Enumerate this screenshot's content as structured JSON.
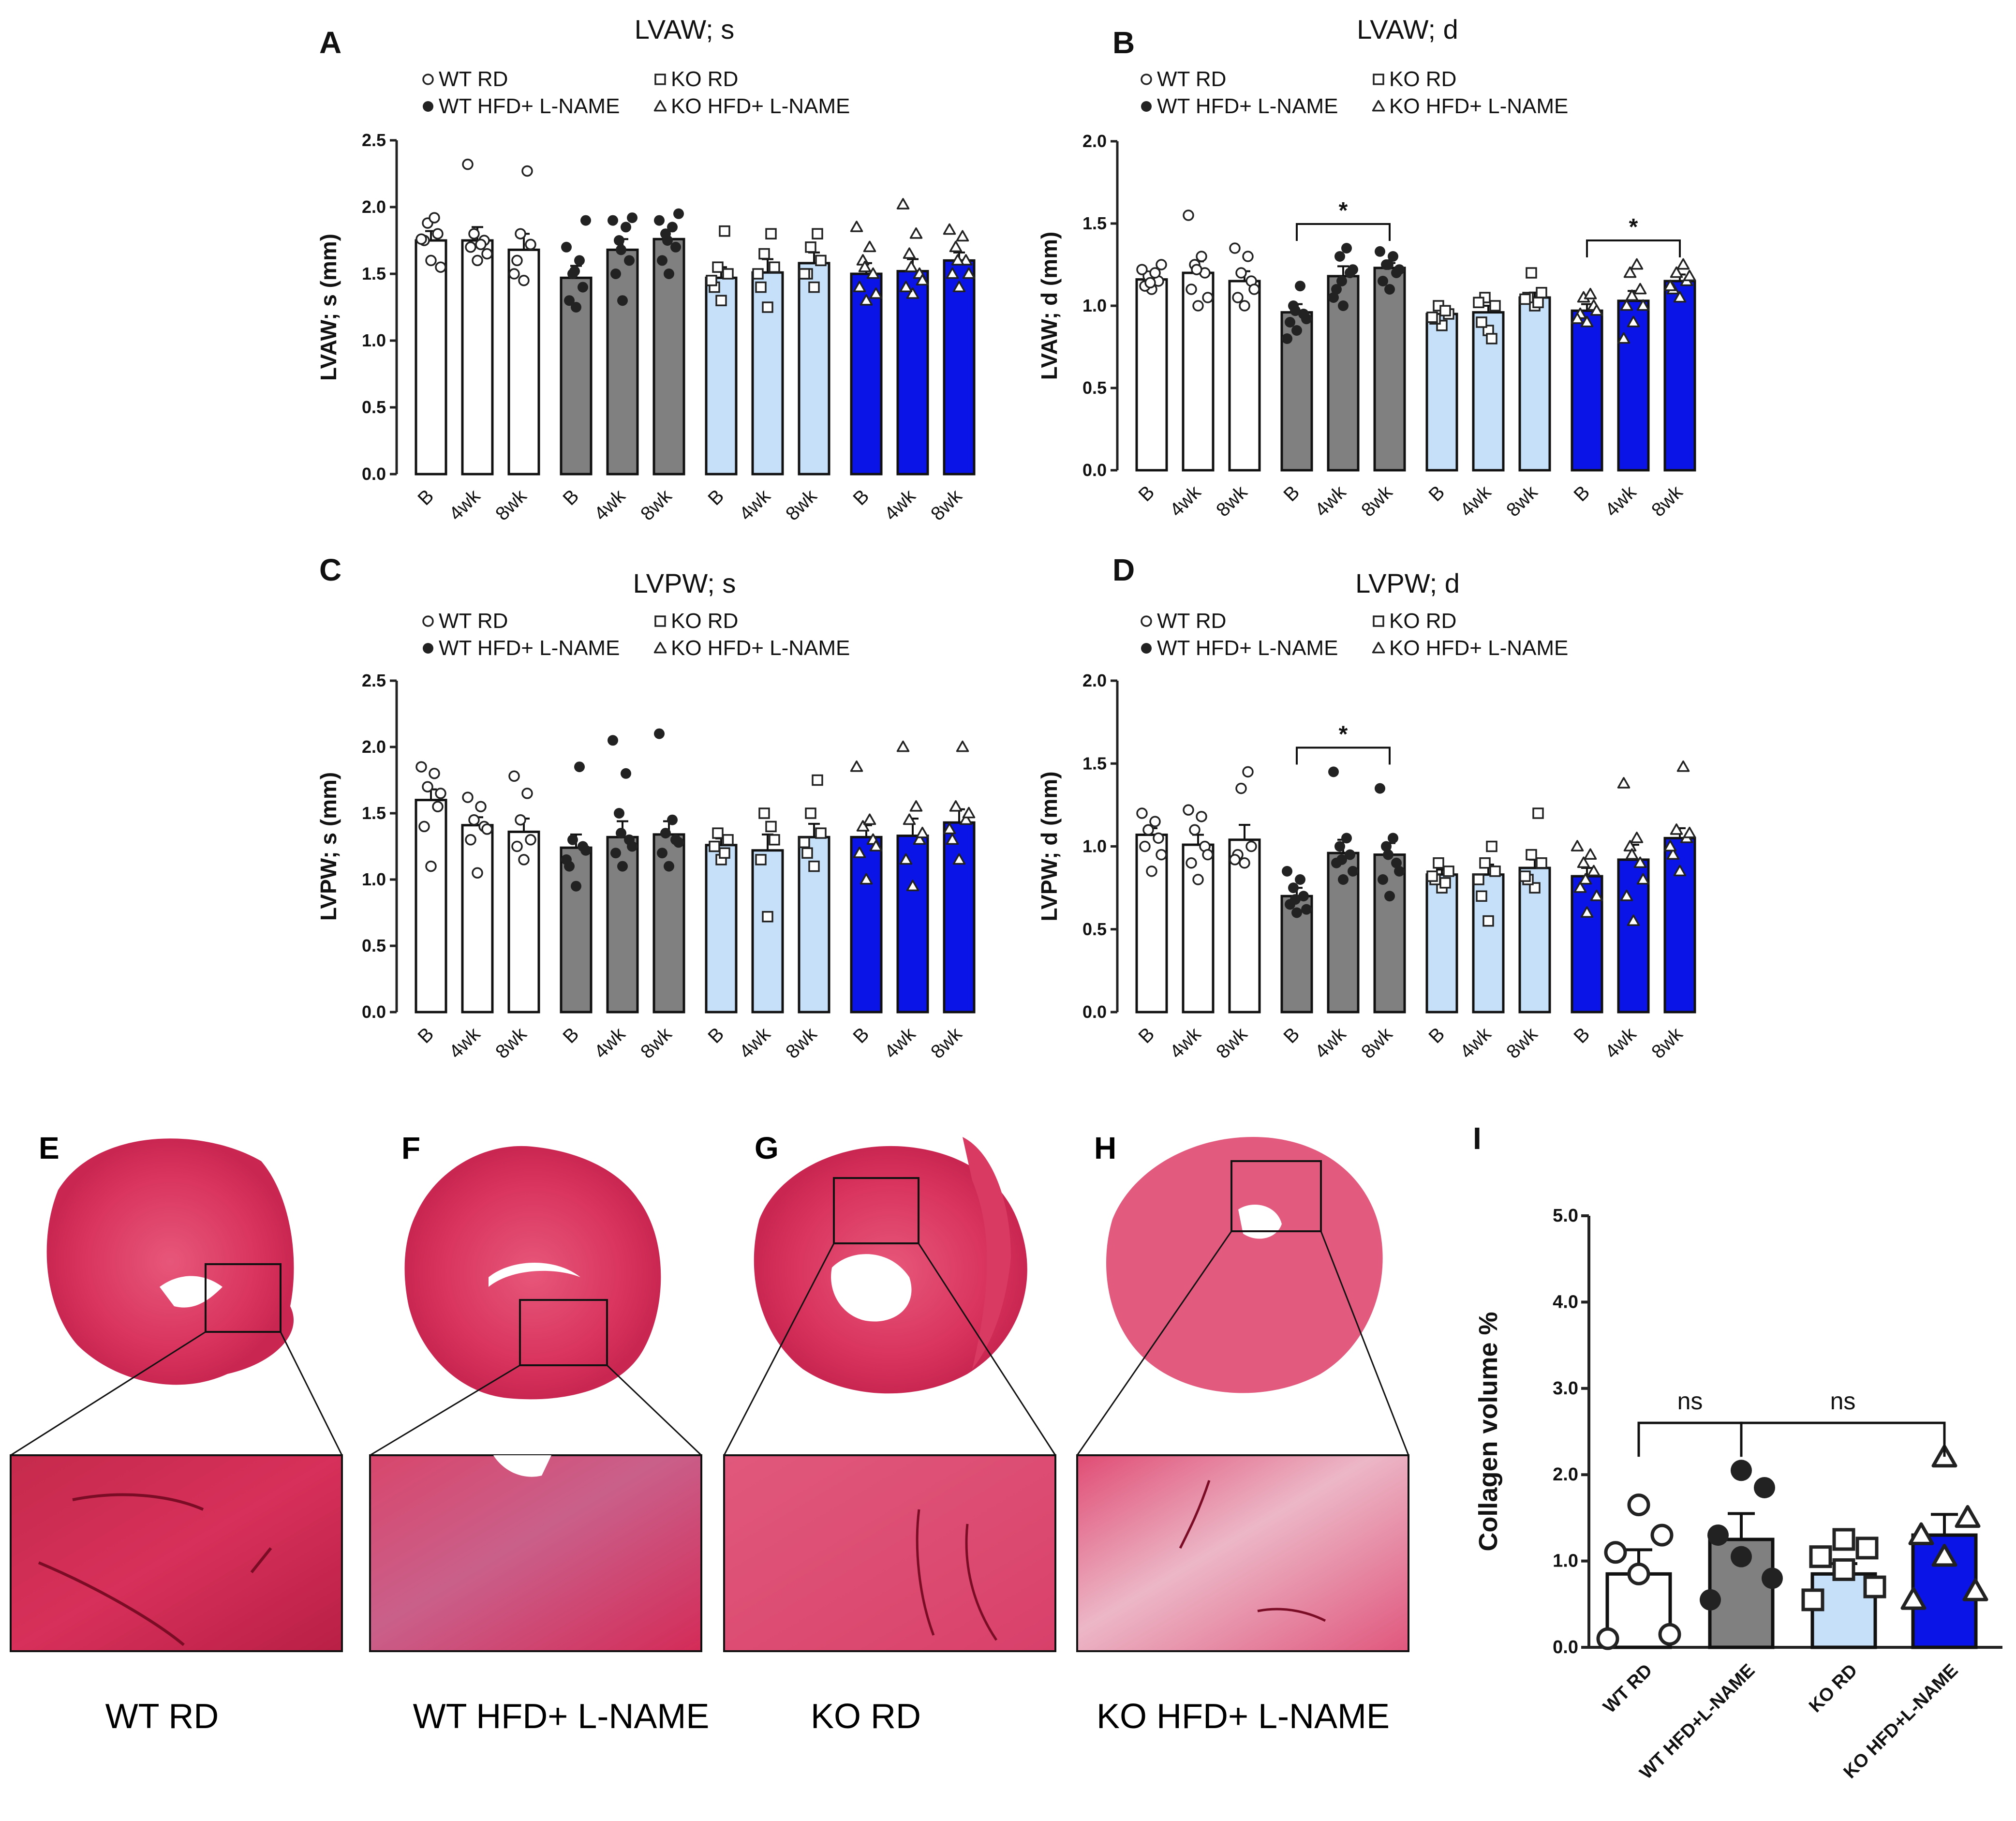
{
  "figure": {
    "legend_entries": [
      "WT RD",
      "KO RD",
      "WT HFD+ L-NAME",
      "KO HFD+ L-NAME"
    ],
    "colors": {
      "WT RD": "#ffffff",
      "WT HFD+ L-NAME": "#808080",
      "KO RD": "#c5e0f8",
      "KO HFD+ L-NAME": "#0a14e6"
    },
    "histology": {
      "panels": [
        {
          "letter": "E",
          "caption": "WT RD"
        },
        {
          "letter": "F",
          "caption": "WT HFD+ L-NAME"
        },
        {
          "letter": "G",
          "caption": "KO RD"
        },
        {
          "letter": "H",
          "caption": "KO HFD+ L-NAME"
        }
      ]
    }
  },
  "chart_data": [
    {
      "letter": "A",
      "type": "bar",
      "title": "LVAW; s",
      "ylabel": "LVAW; s (mm)",
      "ylim": [
        0,
        2.5
      ],
      "yticks": [
        "0.0",
        "0.5",
        "1.0",
        "1.5",
        "2.0",
        "2.5"
      ],
      "categories": [
        "B",
        "4wk",
        "8wk"
      ],
      "series": [
        {
          "name": "WT RD",
          "marker": "circle",
          "values": [
            1.75,
            1.75,
            1.68
          ],
          "sem": [
            0.07,
            0.1,
            0.12
          ],
          "points": [
            [
              1.6,
              1.75,
              1.8,
              1.88,
              1.92,
              1.76,
              1.55
            ],
            [
              1.6,
              1.7,
              1.75,
              1.8,
              1.72,
              2.32,
              1.65
            ],
            [
              1.45,
              1.6,
              1.72,
              1.8,
              2.27,
              1.5
            ]
          ]
        },
        {
          "name": "WT HFD+ L-NAME",
          "marker": "dot",
          "values": [
            1.47,
            1.68,
            1.76
          ],
          "sem": [
            0.09,
            0.08,
            0.06
          ],
          "points": [
            [
              1.25,
              1.3,
              1.4,
              1.5,
              1.6,
              1.7,
              1.9,
              1.52
            ],
            [
              1.3,
              1.5,
              1.6,
              1.75,
              1.85,
              1.9,
              1.92,
              1.68
            ],
            [
              1.5,
              1.6,
              1.7,
              1.8,
              1.85,
              1.9,
              1.95,
              1.75
            ]
          ]
        },
        {
          "name": "KO RD",
          "marker": "square",
          "values": [
            1.47,
            1.51,
            1.58
          ],
          "sem": [
            0.08,
            0.1,
            0.08
          ],
          "points": [
            [
              1.3,
              1.4,
              1.5,
              1.55,
              1.82,
              1.45
            ],
            [
              1.25,
              1.4,
              1.55,
              1.65,
              1.8,
              1.5
            ],
            [
              1.4,
              1.5,
              1.6,
              1.7,
              1.8,
              1.5
            ]
          ]
        },
        {
          "name": "KO HFD+ L-NAME",
          "marker": "triangle",
          "values": [
            1.5,
            1.52,
            1.6
          ],
          "sem": [
            0.08,
            0.09,
            0.06
          ],
          "points": [
            [
              1.3,
              1.4,
              1.5,
              1.6,
              1.7,
              1.85,
              1.35,
              1.55
            ],
            [
              1.35,
              1.4,
              1.5,
              1.65,
              1.8,
              2.02,
              1.45,
              1.55
            ],
            [
              1.4,
              1.5,
              1.6,
              1.7,
              1.78,
              1.83,
              1.5,
              1.6
            ]
          ]
        }
      ],
      "significance": []
    },
    {
      "letter": "B",
      "type": "bar",
      "title": "LVAW; d",
      "ylabel": "LVAW; d (mm)",
      "ylim": [
        0,
        2.0
      ],
      "yticks": [
        "0.0",
        "0.5",
        "1.0",
        "1.5",
        "2.0"
      ],
      "categories": [
        "B",
        "4wk",
        "8wk"
      ],
      "series": [
        {
          "name": "WT RD",
          "marker": "circle",
          "values": [
            1.16,
            1.2,
            1.15
          ],
          "sem": [
            0.03,
            0.07,
            0.06
          ],
          "points": [
            [
              1.1,
              1.12,
              1.15,
              1.18,
              1.2,
              1.22,
              1.25,
              1.14
            ],
            [
              1.0,
              1.1,
              1.2,
              1.25,
              1.3,
              1.55,
              1.05,
              1.22
            ],
            [
              1.0,
              1.05,
              1.15,
              1.2,
              1.3,
              1.35,
              1.1
            ]
          ]
        },
        {
          "name": "WT HFD+ L-NAME",
          "marker": "dot",
          "values": [
            0.96,
            1.18,
            1.23
          ],
          "sem": [
            0.05,
            0.06,
            0.03
          ],
          "points": [
            [
              0.85,
              0.9,
              0.95,
              1.0,
              1.12,
              0.8,
              0.92,
              0.97
            ],
            [
              1.0,
              1.1,
              1.2,
              1.3,
              1.35,
              1.05,
              1.22,
              1.15
            ],
            [
              1.1,
              1.15,
              1.2,
              1.25,
              1.3,
              1.33,
              1.22,
              1.25
            ]
          ]
        },
        {
          "name": "KO RD",
          "marker": "square",
          "values": [
            0.95,
            0.96,
            1.05
          ],
          "sem": [
            0.03,
            0.04,
            0.03
          ],
          "points": [
            [
              0.88,
              0.92,
              0.95,
              1.0,
              0.97,
              0.93
            ],
            [
              0.85,
              0.9,
              1.0,
              1.05,
              0.8,
              1.02
            ],
            [
              1.0,
              1.05,
              1.08,
              1.2,
              1.02,
              1.04
            ]
          ]
        },
        {
          "name": "KO HFD+ L-NAME",
          "marker": "triangle",
          "values": [
            0.97,
            1.03,
            1.15
          ],
          "sem": [
            0.04,
            0.06,
            0.04
          ],
          "points": [
            [
              0.9,
              0.95,
              1.0,
              1.05,
              1.07,
              0.92,
              0.97
            ],
            [
              0.9,
              1.0,
              1.1,
              1.2,
              1.25,
              0.8,
              1.0,
              1.06
            ],
            [
              1.05,
              1.1,
              1.15,
              1.2,
              1.25,
              1.12,
              1.18
            ]
          ]
        }
      ],
      "significance": [
        {
          "group": 1,
          "from": 0,
          "to": 2,
          "label": "*"
        },
        {
          "group": 3,
          "from": 0,
          "to": 2,
          "label": "*"
        }
      ]
    },
    {
      "letter": "C",
      "type": "bar",
      "title": "LVPW; s",
      "ylabel": "LVPW; s (mm)",
      "ylim": [
        0,
        2.5
      ],
      "yticks": [
        "0.0",
        "0.5",
        "1.0",
        "1.5",
        "2.0",
        "2.5"
      ],
      "categories": [
        "B",
        "4wk",
        "8wk"
      ],
      "series": [
        {
          "name": "WT RD",
          "marker": "circle",
          "values": [
            1.6,
            1.41,
            1.36
          ],
          "sem": [
            0.08,
            0.06,
            0.1
          ],
          "points": [
            [
              1.1,
              1.4,
              1.55,
              1.7,
              1.8,
              1.85,
              1.65
            ],
            [
              1.05,
              1.3,
              1.4,
              1.45,
              1.55,
              1.62,
              1.38
            ],
            [
              1.15,
              1.25,
              1.3,
              1.45,
              1.65,
              1.78
            ]
          ]
        },
        {
          "name": "WT HFD+ L-NAME",
          "marker": "dot",
          "values": [
            1.24,
            1.32,
            1.34
          ],
          "sem": [
            0.1,
            0.12,
            0.1
          ],
          "points": [
            [
              0.95,
              1.1,
              1.25,
              1.3,
              1.85,
              1.15,
              1.22
            ],
            [
              1.1,
              1.2,
              1.3,
              1.5,
              1.8,
              2.05,
              1.25,
              1.35
            ],
            [
              1.1,
              1.2,
              1.3,
              1.35,
              1.45,
              2.1,
              1.28
            ]
          ]
        },
        {
          "name": "KO RD",
          "marker": "square",
          "values": [
            1.26,
            1.22,
            1.32
          ],
          "sem": [
            0.05,
            0.12,
            0.1
          ],
          "points": [
            [
              1.15,
              1.25,
              1.3,
              1.35,
              1.2
            ],
            [
              0.72,
              1.15,
              1.3,
              1.5,
              1.4
            ],
            [
              1.1,
              1.2,
              1.35,
              1.5,
              1.75,
              1.28
            ]
          ]
        },
        {
          "name": "KO HFD+ L-NAME",
          "marker": "triangle",
          "values": [
            1.32,
            1.33,
            1.43
          ],
          "sem": [
            0.09,
            0.13,
            0.1
          ],
          "points": [
            [
              1.0,
              1.2,
              1.3,
              1.4,
              1.45,
              1.85,
              1.25
            ],
            [
              0.95,
              1.15,
              1.3,
              1.45,
              1.55,
              2.0,
              1.35
            ],
            [
              1.15,
              1.3,
              1.45,
              1.55,
              2.0,
              1.38,
              1.5
            ]
          ]
        }
      ],
      "significance": []
    },
    {
      "letter": "D",
      "type": "bar",
      "title": "LVPW; d",
      "ylabel": "LVPW; d (mm)",
      "ylim": [
        0,
        2.0
      ],
      "yticks": [
        "0.0",
        "0.5",
        "1.0",
        "1.5",
        "2.0"
      ],
      "categories": [
        "B",
        "4wk",
        "8wk"
      ],
      "series": [
        {
          "name": "WT RD",
          "marker": "circle",
          "values": [
            1.07,
            1.01,
            1.04
          ],
          "sem": [
            0.04,
            0.06,
            0.09
          ],
          "points": [
            [
              0.85,
              1.0,
              1.05,
              1.1,
              1.15,
              1.2,
              0.95
            ],
            [
              0.8,
              0.9,
              1.0,
              1.1,
              1.18,
              1.22,
              0.95
            ],
            [
              0.9,
              0.95,
              1.0,
              1.35,
              1.45,
              0.92
            ]
          ]
        },
        {
          "name": "WT HFD+ L-NAME",
          "marker": "dot",
          "values": [
            0.7,
            0.96,
            0.95
          ],
          "sem": [
            0.05,
            0.08,
            0.07
          ],
          "points": [
            [
              0.6,
              0.65,
              0.7,
              0.75,
              0.8,
              0.85,
              0.62,
              0.68
            ],
            [
              0.8,
              0.9,
              0.95,
              1.0,
              1.05,
              1.45,
              0.85,
              0.92
            ],
            [
              0.7,
              0.8,
              0.9,
              1.0,
              1.05,
              1.35,
              0.85,
              0.95
            ]
          ]
        },
        {
          "name": "KO RD",
          "marker": "square",
          "values": [
            0.83,
            0.83,
            0.87
          ],
          "sem": [
            0.03,
            0.06,
            0.05
          ],
          "points": [
            [
              0.75,
              0.8,
              0.85,
              0.9,
              0.78,
              0.82
            ],
            [
              0.55,
              0.7,
              0.85,
              0.9,
              1.0,
              0.8
            ],
            [
              0.75,
              0.8,
              0.9,
              0.95,
              1.2,
              0.82
            ]
          ]
        },
        {
          "name": "KO HFD+ L-NAME",
          "marker": "triangle",
          "values": [
            0.82,
            0.92,
            1.05
          ],
          "sem": [
            0.05,
            0.09,
            0.06
          ],
          "points": [
            [
              0.6,
              0.75,
              0.85,
              0.9,
              0.95,
              1.0,
              0.7,
              0.8
            ],
            [
              0.55,
              0.7,
              0.9,
              1.0,
              1.05,
              1.38,
              0.8,
              0.95
            ],
            [
              0.85,
              0.95,
              1.05,
              1.1,
              1.48,
              1.0,
              1.08
            ]
          ]
        }
      ],
      "significance": [
        {
          "group": 1,
          "from": 0,
          "to": 2,
          "label": "*"
        }
      ]
    },
    {
      "letter": "I",
      "type": "bar",
      "title": "",
      "ylabel": "Collagen volume %",
      "ylim": [
        0,
        5.0
      ],
      "yticks": [
        "0.0",
        "1.0",
        "2.0",
        "3.0",
        "4.0",
        "5.0"
      ],
      "categories": [
        "WT RD",
        "WT HFD+L-NAME",
        "KO RD",
        "KO HFD+L-NAME"
      ],
      "series": [
        {
          "name": "Collagen volume %",
          "values": [
            0.85,
            1.25,
            0.85,
            1.3
          ],
          "sem": [
            0.28,
            0.3,
            0.12,
            0.24
          ],
          "markers": [
            "circle",
            "dot",
            "square",
            "triangle"
          ],
          "points": [
            [
              0.1,
              0.15,
              0.85,
              1.1,
              1.3,
              1.65
            ],
            [
              0.55,
              0.8,
              1.05,
              1.3,
              1.85,
              2.05
            ],
            [
              0.55,
              0.7,
              0.9,
              1.05,
              1.15,
              1.25
            ],
            [
              0.55,
              0.65,
              1.05,
              1.3,
              1.5,
              2.2
            ]
          ]
        }
      ],
      "significance": [
        {
          "from": 0,
          "to": 1,
          "label": "ns"
        },
        {
          "from": 1,
          "to": 3,
          "label": "ns"
        }
      ]
    }
  ]
}
